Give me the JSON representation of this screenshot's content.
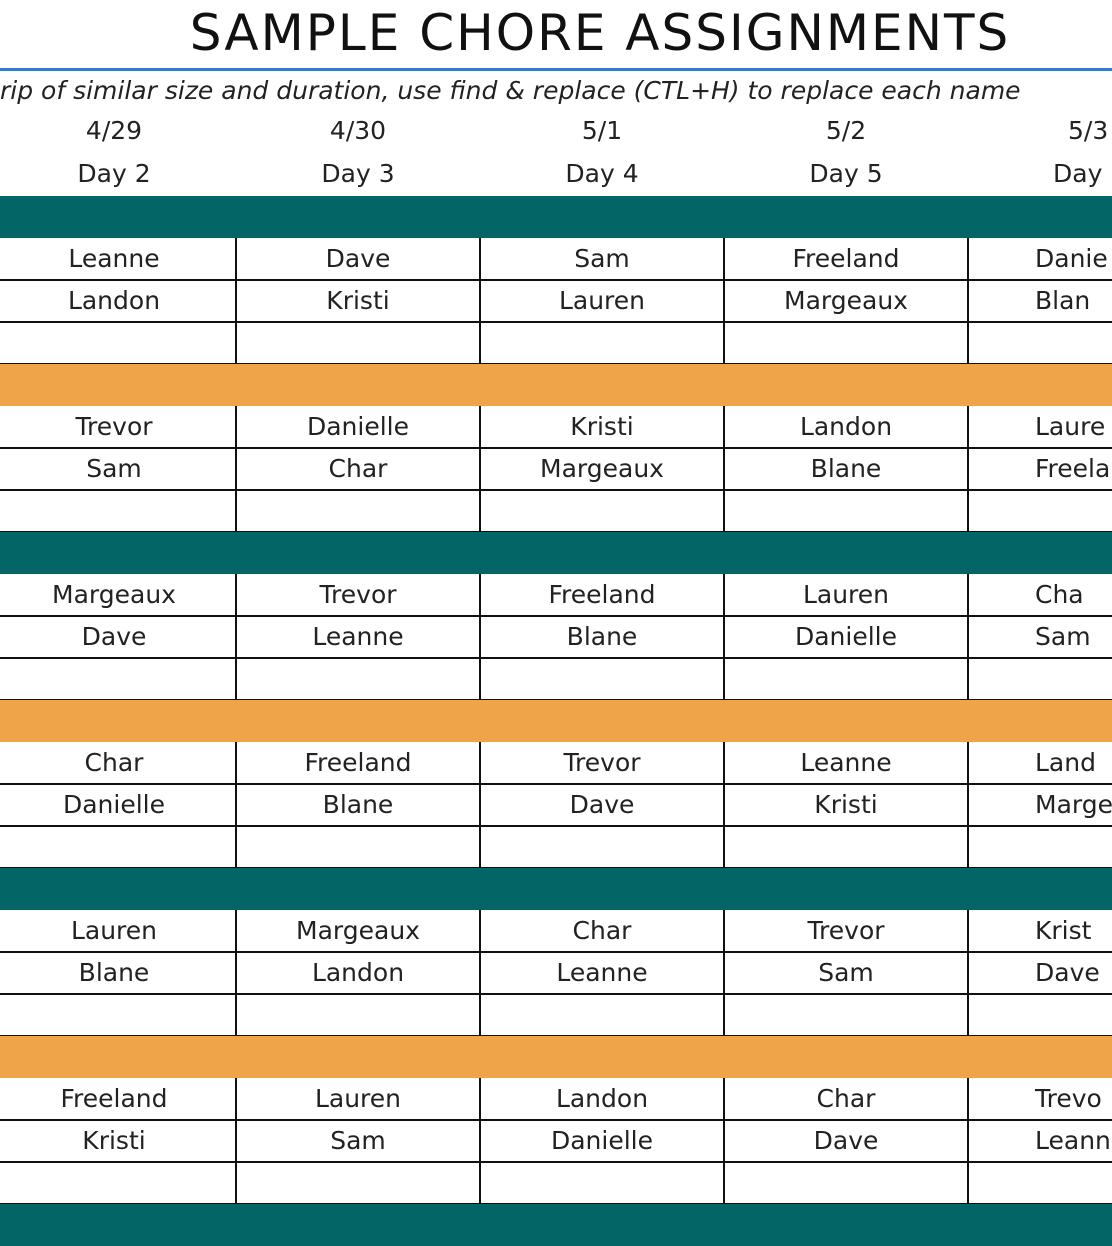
{
  "title": "SAMPLE CHORE ASSIGNMENTS",
  "subtitle": "rip of similar size and duration, use find & replace (CTL+H) to replace each name",
  "dates": [
    "4/29",
    "4/30",
    "5/1",
    "5/2",
    "5/3"
  ],
  "days": [
    "Day 2",
    "Day 3",
    "Day 4",
    "Day 5",
    "Day"
  ],
  "groups": [
    {
      "rows": [
        [
          "Leanne",
          "Dave",
          "Sam",
          "Freeland",
          "Danie"
        ],
        [
          "Landon",
          "Kristi",
          "Lauren",
          "Margeaux",
          "Blan"
        ]
      ]
    },
    {
      "rows": [
        [
          "Trevor",
          "Danielle",
          "Kristi",
          "Landon",
          "Laure"
        ],
        [
          "Sam",
          "Char",
          "Margeaux",
          "Blane",
          "Freela"
        ]
      ]
    },
    {
      "rows": [
        [
          "Margeaux",
          "Trevor",
          "Freeland",
          "Lauren",
          "Cha"
        ],
        [
          "Dave",
          "Leanne",
          "Blane",
          "Danielle",
          "Sam"
        ]
      ]
    },
    {
      "rows": [
        [
          "Char",
          "Freeland",
          "Trevor",
          "Leanne",
          "Land"
        ],
        [
          "Danielle",
          "Blane",
          "Dave",
          "Kristi",
          "Marge"
        ]
      ]
    },
    {
      "rows": [
        [
          "Lauren",
          "Margeaux",
          "Char",
          "Trevor",
          "Krist"
        ],
        [
          "Blane",
          "Landon",
          "Leanne",
          "Sam",
          "Dave"
        ]
      ]
    },
    {
      "rows": [
        [
          "Freeland",
          "Lauren",
          "Landon",
          "Char",
          "Trevo"
        ],
        [
          "Kristi",
          "Sam",
          "Danielle",
          "Dave",
          "Leann"
        ]
      ]
    }
  ]
}
